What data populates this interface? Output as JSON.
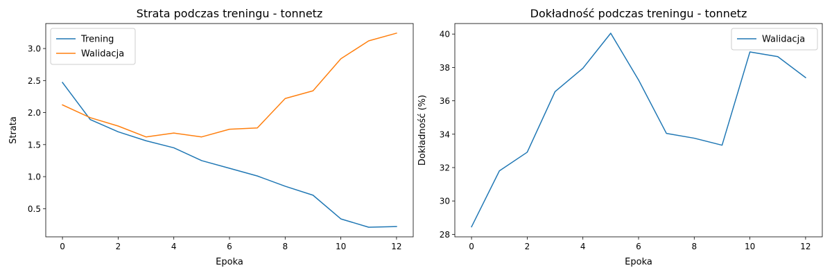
{
  "chart_data": [
    {
      "type": "line",
      "title": "Strata podczas treningu - tonnetz",
      "xlabel": "Epoka",
      "ylabel": "Strata",
      "xlim": [
        -0.6,
        12.6
      ],
      "ylim": [
        0.06,
        3.39
      ],
      "xticks": [
        0,
        2,
        4,
        6,
        8,
        10,
        12
      ],
      "yticks": [
        0.5,
        1.0,
        1.5,
        2.0,
        2.5,
        3.0
      ],
      "ytick_labels": [
        "0.5",
        "1.0",
        "1.5",
        "2.0",
        "2.5",
        "3.0"
      ],
      "grid": false,
      "legend": "top-left",
      "x": [
        0,
        1,
        2,
        3,
        4,
        5,
        6,
        7,
        8,
        9,
        10,
        11,
        12
      ],
      "series": [
        {
          "name": "Trening",
          "color": "#1f77b4",
          "values": [
            2.47,
            1.89,
            1.7,
            1.56,
            1.45,
            1.25,
            1.13,
            1.01,
            0.85,
            0.71,
            0.34,
            0.21,
            0.22
          ]
        },
        {
          "name": "Walidacja",
          "color": "#ff7f0e",
          "values": [
            2.12,
            1.92,
            1.79,
            1.62,
            1.68,
            1.62,
            1.74,
            1.76,
            2.22,
            2.34,
            2.84,
            3.12,
            3.24
          ]
        }
      ]
    },
    {
      "type": "line",
      "title": "Dokładność podczas treningu - tonnetz",
      "xlabel": "Epoka",
      "ylabel": "Dokładność (%)",
      "xlim": [
        -0.6,
        12.6
      ],
      "ylim": [
        27.85,
        40.63
      ],
      "xticks": [
        0,
        2,
        4,
        6,
        8,
        10,
        12
      ],
      "yticks": [
        28,
        30,
        32,
        34,
        36,
        38,
        40
      ],
      "ytick_labels": [
        "28",
        "30",
        "32",
        "34",
        "36",
        "38",
        "40"
      ],
      "grid": false,
      "legend": "top-right",
      "x": [
        0,
        1,
        2,
        3,
        4,
        5,
        6,
        7,
        8,
        9,
        10,
        11,
        12
      ],
      "series": [
        {
          "name": "Walidacja",
          "color": "#1f77b4",
          "values": [
            28.45,
            31.8,
            32.92,
            36.55,
            37.95,
            40.05,
            37.25,
            34.05,
            33.76,
            33.34,
            38.93,
            38.65,
            37.39
          ]
        }
      ]
    }
  ]
}
